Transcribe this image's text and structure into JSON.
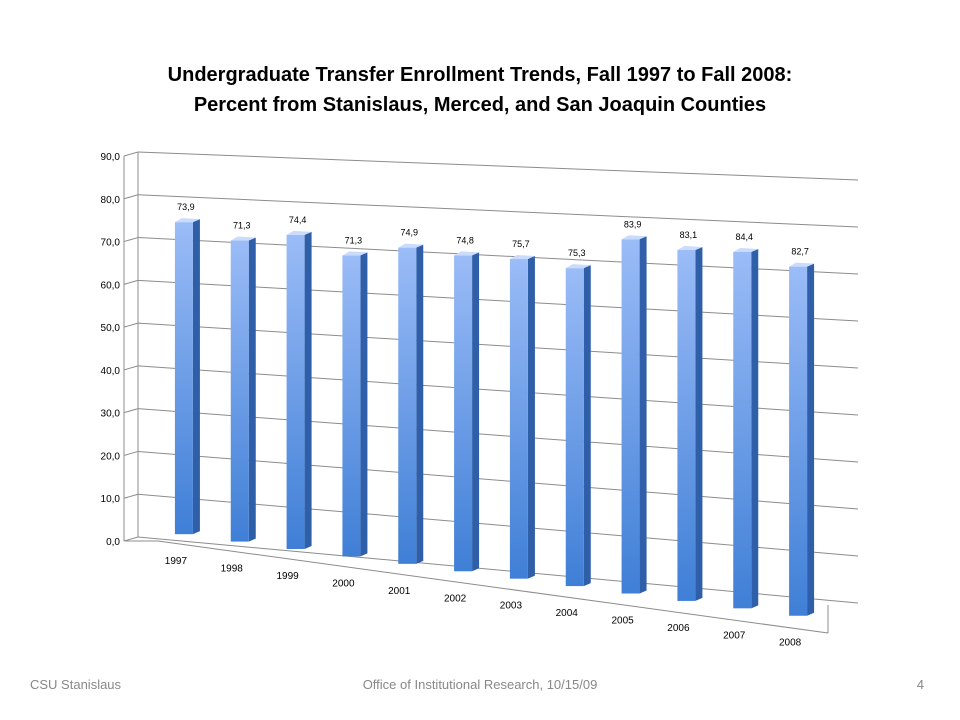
{
  "chart_data": {
    "type": "bar",
    "title_lines": [
      "Undergraduate Transfer Enrollment Trends, Fall 1997 to Fall 2008:",
      "Percent from Stanislaus, Merced, and San Joaquin Counties"
    ],
    "categories": [
      "1997",
      "1998",
      "1999",
      "2000",
      "2001",
      "2002",
      "2003",
      "2004",
      "2005",
      "2006",
      "2007",
      "2008"
    ],
    "values": [
      73.9,
      71.3,
      74.4,
      71.3,
      74.9,
      74.8,
      75.7,
      75.3,
      83.9,
      83.1,
      84.4,
      82.7
    ],
    "value_labels": [
      "73,9",
      "71,3",
      "74,4",
      "71,3",
      "74,9",
      "74,8",
      "75,7",
      "75,3",
      "83,9",
      "83,1",
      "84,4",
      "82,7"
    ],
    "y_ticks": [
      "0,0",
      "10,0",
      "20,0",
      "30,0",
      "40,0",
      "50,0",
      "60,0",
      "70,0",
      "80,0",
      "90,0"
    ],
    "ylim": [
      0,
      90
    ],
    "grid": true,
    "legend": "none",
    "bar_colors": {
      "top": "#9bbcf7",
      "bottom": "#3f7fd6",
      "side": "#2f5fa8",
      "cap": "#c9dcfb"
    }
  },
  "footer": {
    "left": "CSU Stanislaus",
    "center": "Office of Institutional  Research, 10/15/09",
    "right": "4"
  }
}
